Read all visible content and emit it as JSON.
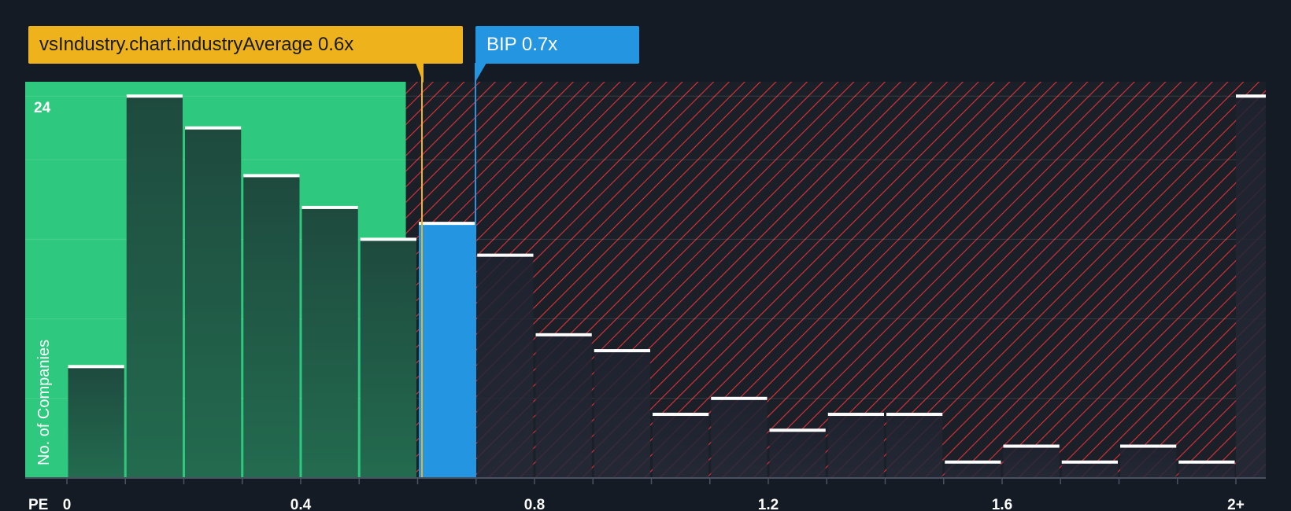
{
  "callouts": {
    "industry": "vsIndustry.chart.industryAverage 0.6x",
    "company": "BIP 0.7x"
  },
  "colors": {
    "background": "#151b24",
    "fair_zone": "#2ec97e",
    "company_bar": "#2395e1",
    "industry_marker": "#eeb21c",
    "hatch": "#e0323c"
  },
  "chart_data": {
    "type": "bar",
    "xlabel": "PE",
    "ylabel": "No. of Companies",
    "y_tick_label": "24",
    "x_tick_labels": [
      "0",
      "0.4",
      "0.8",
      "1.2",
      "1.6",
      "2+"
    ],
    "x_tick_values": [
      0,
      0.4,
      0.8,
      1.2,
      1.6,
      2.0
    ],
    "bin_width": 0.1,
    "bins": [
      {
        "x0": 0.0,
        "value": 7
      },
      {
        "x0": 0.1,
        "value": 24
      },
      {
        "x0": 0.2,
        "value": 22
      },
      {
        "x0": 0.3,
        "value": 19
      },
      {
        "x0": 0.4,
        "value": 17
      },
      {
        "x0": 0.5,
        "value": 15
      },
      {
        "x0": 0.6,
        "value": 16,
        "highlight": true
      },
      {
        "x0": 0.7,
        "value": 14
      },
      {
        "x0": 0.8,
        "value": 9
      },
      {
        "x0": 0.9,
        "value": 8
      },
      {
        "x0": 1.0,
        "value": 4
      },
      {
        "x0": 1.1,
        "value": 5
      },
      {
        "x0": 1.2,
        "value": 3
      },
      {
        "x0": 1.3,
        "value": 4
      },
      {
        "x0": 1.4,
        "value": 4
      },
      {
        "x0": 1.5,
        "value": 1
      },
      {
        "x0": 1.6,
        "value": 2
      },
      {
        "x0": 1.7,
        "value": 1
      },
      {
        "x0": 1.8,
        "value": 2
      },
      {
        "x0": 1.9,
        "value": 1
      },
      {
        "x0": 2.0,
        "value": 24
      }
    ],
    "ylim": [
      0,
      24.9
    ],
    "industry_average": 0.6,
    "company_value": 0.7,
    "company_name": "BIP",
    "fair_zone_upper": 0.58,
    "grid": true
  }
}
